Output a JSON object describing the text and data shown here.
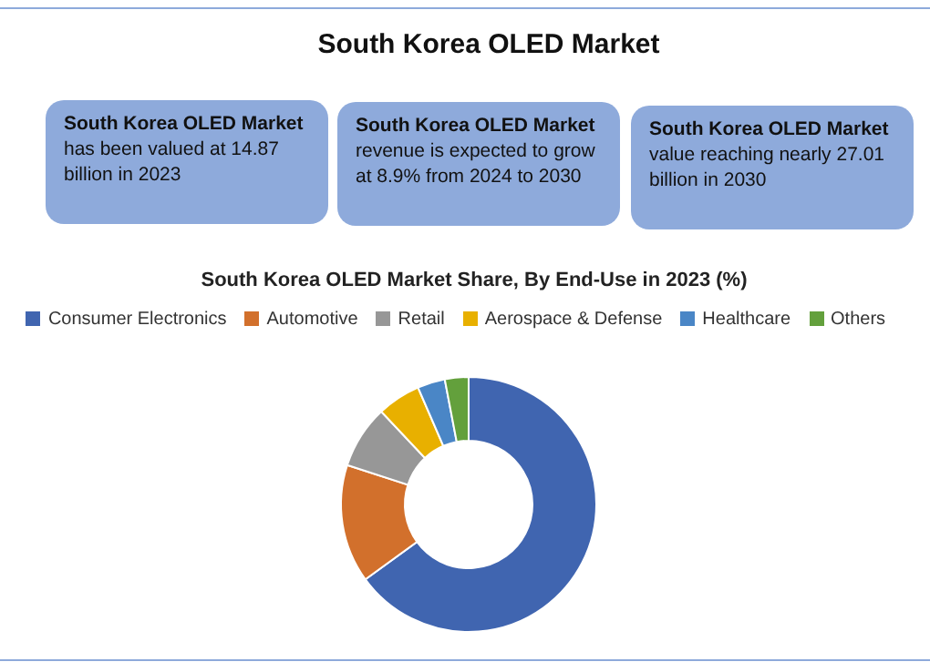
{
  "chart_data": {
    "type": "donut",
    "title": "South Korea OLED Market",
    "subtitle": "South Korea OLED Market Share, By End-Use in 2023 (%)",
    "annotations": [
      "South Korea OLED Market\nhas been valued at 14.87 billion in 2023",
      "South Korea OLED Market\nrevenue is expected to grow at 8.9% from 2024 to 2030",
      "South Korea OLED Market\nvalue reaching nearly 27.01 billion in 2030"
    ],
    "categories": [
      "Consumer Electronics",
      "Automotive",
      "Retail",
      "Aerospace & Defense",
      "Healthcare",
      "Others"
    ],
    "values": [
      65,
      15,
      8,
      5.5,
      3.5,
      3
    ],
    "colors": [
      "#4065b0",
      "#d2702c",
      "#979797",
      "#e8b000",
      "#4a86c6",
      "#63a03c"
    ],
    "legend": "top"
  }
}
